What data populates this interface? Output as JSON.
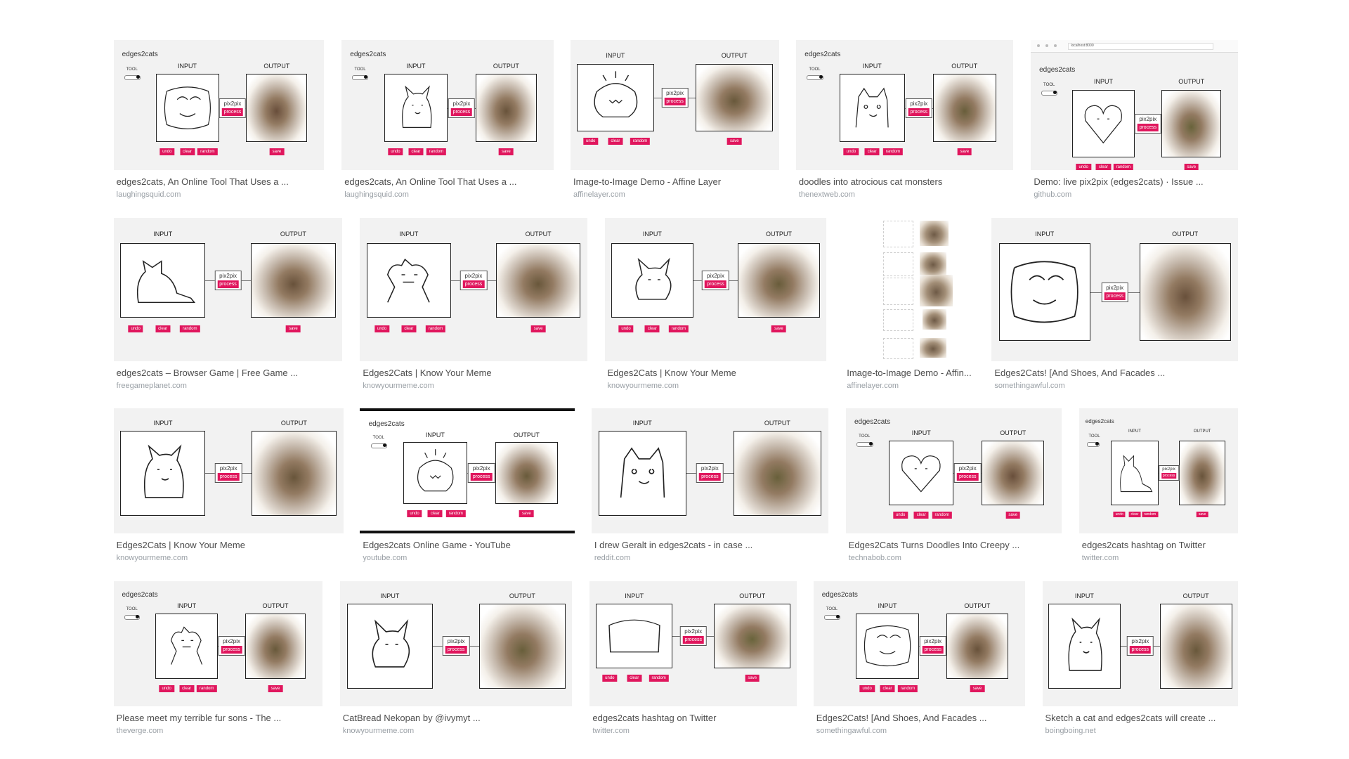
{
  "colors": {
    "accent": "#e0165d",
    "caption": "#4d4d4d",
    "source": "#9aa0a6",
    "thumb_bg": "#f2f2f2"
  },
  "demo_text": {
    "brand": "edges2cats",
    "tool": "TOOL",
    "input": "INPUT",
    "output": "OUTPUT",
    "pix2pix": "pix2pix",
    "process": "process",
    "undo": "undo",
    "clear": "clear",
    "random": "random",
    "save": "save",
    "url": "localhost:8000"
  },
  "results": [
    {
      "title": "edges2cats, An Online Tool That Uses a ...",
      "source": "laughingsquid.com"
    },
    {
      "title": "edges2cats, An Online Tool That Uses a ...",
      "source": "laughingsquid.com"
    },
    {
      "title": "Image-to-Image Demo - Affine Layer",
      "source": "affinelayer.com"
    },
    {
      "title": "doodles into atrocious cat monsters",
      "source": "thenextweb.com"
    },
    {
      "title": "Demo: live pix2pix (edges2cats) · Issue ...",
      "source": "github.com"
    },
    {
      "title": "edges2cats – Browser Game | Free Game ...",
      "source": "freegameplanet.com"
    },
    {
      "title": "Edges2Cats | Know Your Meme",
      "source": "knowyourmeme.com"
    },
    {
      "title": "Edges2Cats | Know Your Meme",
      "source": "knowyourmeme.com"
    },
    {
      "title": "Image-to-Image Demo - Affin...",
      "source": "affinelayer.com"
    },
    {
      "title": "Edges2Cats! [And Shoes, And Facades ...",
      "source": "somethingawful.com"
    },
    {
      "title": "Edges2Cats | Know Your Meme",
      "source": "knowyourmeme.com"
    },
    {
      "title": "Edges2cats Online Game - YouTube",
      "source": "youtube.com"
    },
    {
      "title": "I drew Geralt in edges2cats - in case ...",
      "source": "reddit.com"
    },
    {
      "title": "Edges2Cats Turns Doodles Into Creepy ...",
      "source": "technabob.com"
    },
    {
      "title": "edges2cats hashtag on Twitter",
      "source": "twitter.com"
    },
    {
      "title": "Please meet my terrible fur sons - The ...",
      "source": "theverge.com"
    },
    {
      "title": "CatBread Nekopan by @ivymyt ...",
      "source": "knowyourmeme.com"
    },
    {
      "title": "edges2cats hashtag on Twitter",
      "source": "twitter.com"
    },
    {
      "title": "Edges2Cats! [And Shoes, And Facades ...",
      "source": "somethingawful.com"
    },
    {
      "title": "Sketch a cat and edges2cats will create ...",
      "source": "boingboing.net"
    }
  ]
}
